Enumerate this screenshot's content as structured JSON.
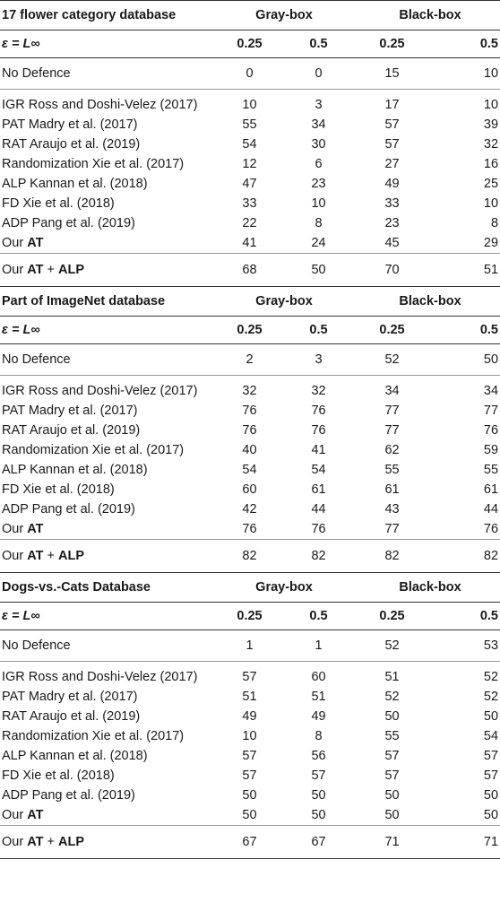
{
  "eps_label": "ε = L∞",
  "eps_values": [
    "0.25",
    "0.5",
    "0.25",
    "0.5"
  ],
  "group_labels": [
    "Gray-box",
    "Black-box"
  ],
  "sections": [
    {
      "title": "17 flower category database",
      "no_defence": {
        "label": "No Defence",
        "values": [
          "0",
          "0",
          "15",
          "10"
        ]
      },
      "rows": [
        {
          "label": "IGR Ross and Doshi-Velez (2017)",
          "values": [
            "10",
            "3",
            "17",
            "10"
          ]
        },
        {
          "label": "PAT Madry et al. (2017)",
          "values": [
            "55",
            "34",
            "57",
            "39"
          ]
        },
        {
          "label": "RAT Araujo et al. (2019)",
          "values": [
            "54",
            "30",
            "57",
            "32"
          ]
        },
        {
          "label": "Randomization Xie et al. (2017)",
          "values": [
            "12",
            "6",
            "27",
            "16"
          ]
        },
        {
          "label": "ALP Kannan et al. (2018)",
          "values": [
            "47",
            "23",
            "49",
            "25"
          ]
        },
        {
          "label": "FD Xie et al. (2018)",
          "values": [
            "33",
            "10",
            "33",
            "10"
          ]
        },
        {
          "label": "ADP Pang et al. (2019)",
          "values": [
            "22",
            "8",
            "23",
            "8"
          ]
        }
      ],
      "our_at": {
        "prefix": "Our ",
        "bold": "AT",
        "values": [
          "41",
          "24",
          "45",
          "29"
        ]
      },
      "our_at_alp": {
        "prefix": "Our ",
        "bold1": "AT",
        "plus": " + ",
        "bold2": "ALP",
        "values": [
          "68",
          "50",
          "70",
          "51"
        ]
      }
    },
    {
      "title": "Part of ImageNet database",
      "no_defence": {
        "label": "No Defence",
        "values": [
          "2",
          "3",
          "52",
          "50"
        ]
      },
      "rows": [
        {
          "label": "IGR Ross and Doshi-Velez (2017)",
          "values": [
            "32",
            "32",
            "34",
            "34"
          ]
        },
        {
          "label": "PAT Madry et al. (2017)",
          "values": [
            "76",
            "76",
            "77",
            "77"
          ]
        },
        {
          "label": "RAT Araujo et al. (2019)",
          "values": [
            "76",
            "76",
            "77",
            "76"
          ]
        },
        {
          "label": "Randomization Xie et al. (2017)",
          "values": [
            "40",
            "41",
            "62",
            "59"
          ]
        },
        {
          "label": "ALP Kannan et al. (2018)",
          "values": [
            "54",
            "54",
            "55",
            "55"
          ]
        },
        {
          "label": "FD Xie et al. (2018)",
          "values": [
            "60",
            "61",
            "61",
            "61"
          ]
        },
        {
          "label": "ADP Pang et al. (2019)",
          "values": [
            "42",
            "44",
            "43",
            "44"
          ]
        }
      ],
      "our_at": {
        "prefix": "Our ",
        "bold": "AT",
        "values": [
          "76",
          "76",
          "77",
          "76"
        ]
      },
      "our_at_alp": {
        "prefix": "Our ",
        "bold1": "AT",
        "plus": " + ",
        "bold2": "ALP",
        "values": [
          "82",
          "82",
          "82",
          "82"
        ]
      }
    },
    {
      "title": "Dogs-vs.-Cats Database",
      "no_defence": {
        "label": "No Defence",
        "values": [
          "1",
          "1",
          "52",
          "53"
        ]
      },
      "rows": [
        {
          "label": "IGR Ross and Doshi-Velez (2017)",
          "values": [
            "57",
            "60",
            "51",
            "52"
          ]
        },
        {
          "label": "PAT Madry et al. (2017)",
          "values": [
            "51",
            "51",
            "52",
            "52"
          ]
        },
        {
          "label": "RAT Araujo et al. (2019)",
          "values": [
            "49",
            "49",
            "50",
            "50"
          ]
        },
        {
          "label": "Randomization Xie et al. (2017)",
          "values": [
            "10",
            "8",
            "55",
            "54"
          ]
        },
        {
          "label": "ALP Kannan et al. (2018)",
          "values": [
            "57",
            "56",
            "57",
            "57"
          ]
        },
        {
          "label": "FD Xie et al. (2018)",
          "values": [
            "57",
            "57",
            "57",
            "57"
          ]
        },
        {
          "label": "ADP Pang et al. (2019)",
          "values": [
            "50",
            "50",
            "50",
            "50"
          ]
        }
      ],
      "our_at": {
        "prefix": "Our ",
        "bold": "AT",
        "values": [
          "50",
          "50",
          "50",
          "50"
        ]
      },
      "our_at_alp": {
        "prefix": "Our ",
        "bold1": "AT",
        "plus": " + ",
        "bold2": "ALP",
        "values": [
          "67",
          "67",
          "71",
          "71"
        ]
      }
    }
  ]
}
